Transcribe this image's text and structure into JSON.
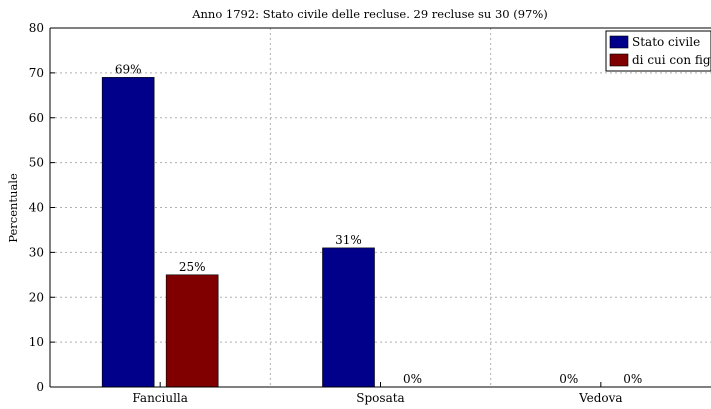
{
  "chart_data": {
    "type": "bar",
    "title": "Anno 1792: Stato civile delle recluse. 29 recluse su 30 (97%)",
    "xlabel": "",
    "ylabel": "Percentuale",
    "categories": [
      "Fanciulla",
      "Sposata",
      "Vedova"
    ],
    "ylim": [
      0,
      80
    ],
    "yticks": [
      0,
      10,
      20,
      30,
      40,
      50,
      60,
      70,
      80
    ],
    "grid": true,
    "legend_position": "top-right",
    "series": [
      {
        "name": "Stato civile",
        "color": "#00008b",
        "values": [
          69,
          31,
          0
        ],
        "labels": [
          "69%",
          "31%",
          "0%"
        ]
      },
      {
        "name": "di cui con figli",
        "color": "#800000",
        "values": [
          25,
          0,
          0
        ],
        "labels": [
          "25%",
          "0%",
          "0%"
        ]
      }
    ]
  }
}
